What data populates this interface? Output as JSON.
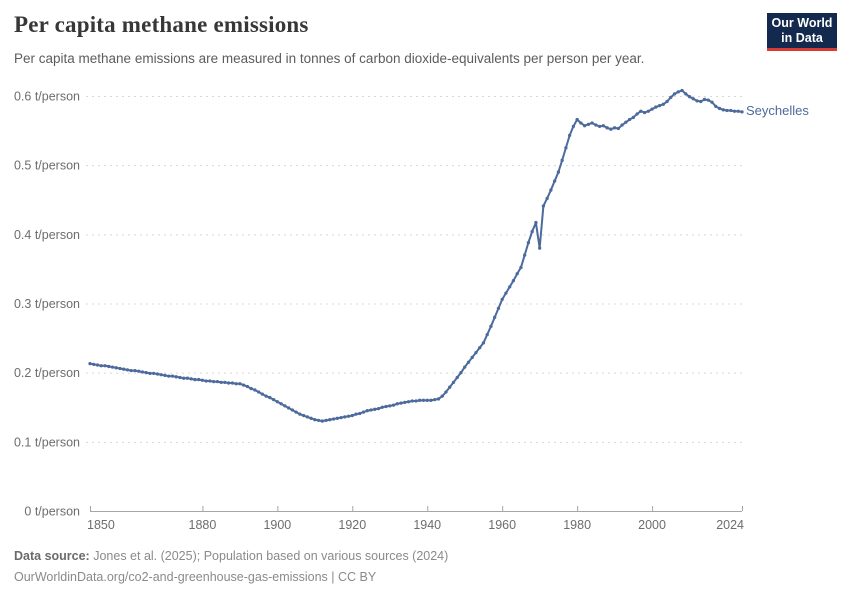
{
  "header": {
    "title": "Per capita methane emissions",
    "subtitle": "Per capita methane emissions are measured in tonnes of carbon dioxide-equivalents per person per year.",
    "logo": {
      "line1": "Our World",
      "line2": "in Data"
    }
  },
  "chart_data": {
    "type": "line",
    "title": "Per capita methane emissions",
    "unit": "t/person",
    "grid": "horizontal-dashed",
    "legend_position": "end-of-line-label",
    "xlim": [
      1850,
      2024
    ],
    "ylim": [
      0,
      0.6
    ],
    "x_ticks": [
      1850,
      1880,
      1900,
      1920,
      1940,
      1960,
      1980,
      2000,
      2024
    ],
    "y_ticks": [
      0,
      0.1,
      0.2,
      0.3,
      0.4,
      0.5,
      0.6
    ],
    "y_tick_labels": [
      "0 t/person",
      "0.1 t/person",
      "0.2 t/person",
      "0.3 t/person",
      "0.4 t/person",
      "0.5 t/person",
      "0.6 t/person"
    ],
    "years": {
      "start": 1850,
      "end": 2024,
      "step": 1
    },
    "series": [
      {
        "name": "Seychelles",
        "color": "#4c6a9c",
        "values": [
          0.213,
          0.212,
          0.211,
          0.21,
          0.21,
          0.209,
          0.208,
          0.207,
          0.206,
          0.205,
          0.204,
          0.203,
          0.203,
          0.202,
          0.201,
          0.2,
          0.199,
          0.199,
          0.198,
          0.197,
          0.196,
          0.195,
          0.195,
          0.194,
          0.193,
          0.192,
          0.192,
          0.191,
          0.19,
          0.19,
          0.189,
          0.188,
          0.188,
          0.187,
          0.187,
          0.186,
          0.186,
          0.185,
          0.185,
          0.184,
          0.184,
          0.182,
          0.18,
          0.177,
          0.175,
          0.172,
          0.169,
          0.166,
          0.164,
          0.161,
          0.158,
          0.155,
          0.152,
          0.149,
          0.146,
          0.143,
          0.14,
          0.138,
          0.136,
          0.134,
          0.132,
          0.131,
          0.13,
          0.131,
          0.132,
          0.133,
          0.134,
          0.135,
          0.136,
          0.137,
          0.138,
          0.14,
          0.141,
          0.143,
          0.145,
          0.146,
          0.147,
          0.148,
          0.15,
          0.151,
          0.152,
          0.153,
          0.155,
          0.156,
          0.157,
          0.158,
          0.159,
          0.159,
          0.16,
          0.16,
          0.16,
          0.16,
          0.161,
          0.162,
          0.166,
          0.172,
          0.179,
          0.186,
          0.193,
          0.2,
          0.208,
          0.215,
          0.222,
          0.229,
          0.236,
          0.243,
          0.255,
          0.267,
          0.28,
          0.293,
          0.306,
          0.315,
          0.324,
          0.333,
          0.343,
          0.352,
          0.37,
          0.388,
          0.404,
          0.417,
          0.38,
          0.441,
          0.452,
          0.464,
          0.477,
          0.49,
          0.507,
          0.525,
          0.543,
          0.556,
          0.566,
          0.561,
          0.557,
          0.559,
          0.561,
          0.558,
          0.556,
          0.557,
          0.554,
          0.552,
          0.554,
          0.553,
          0.558,
          0.562,
          0.566,
          0.569,
          0.574,
          0.578,
          0.576,
          0.578,
          0.581,
          0.584,
          0.586,
          0.588,
          0.592,
          0.598,
          0.603,
          0.606,
          0.608,
          0.603,
          0.599,
          0.596,
          0.593,
          0.592,
          0.595,
          0.594,
          0.591,
          0.585,
          0.582,
          0.58,
          0.579,
          0.579,
          0.578,
          0.578,
          0.577
        ]
      }
    ],
    "colors": {
      "line": "#4c6a9c",
      "gridline": "#d8d8d8",
      "axis": "#a6a6a6",
      "tick_label": "#6d6d6d"
    }
  },
  "series_label": "Seychelles",
  "footer": {
    "source_label": "Data source:",
    "source_text": "Jones et al. (2025); Population based on various sources (2024)",
    "url_text": "OurWorldinData.org/co2-and-greenhouse-gas-emissions",
    "license_sep": " | ",
    "license_text": "CC BY"
  }
}
